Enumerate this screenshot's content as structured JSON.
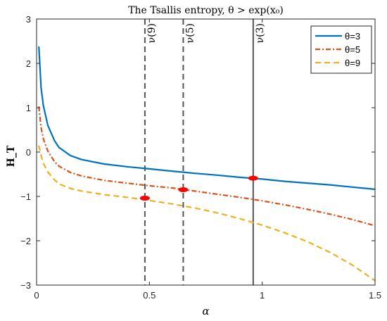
{
  "chart_data": {
    "type": "line",
    "title": "The Tsallis entropy, θ > exp(x₀)",
    "xlabel": "α",
    "ylabel": "H_T",
    "xlim": [
      0,
      1.5
    ],
    "ylim": [
      -3,
      3
    ],
    "xticks": [
      0,
      0.5,
      1,
      1.5
    ],
    "xtick_labels": [
      "0",
      "0.5",
      "1",
      "1.5"
    ],
    "yticks": [
      3,
      2,
      1,
      0,
      -1,
      -2,
      -3
    ],
    "ytick_labels": [
      "3",
      "2",
      "1",
      "0",
      "−1",
      "−2",
      "−3"
    ],
    "grid": false,
    "legend_position": "top-right",
    "series": [
      {
        "name": "θ=3",
        "color": "#0072BD",
        "style": "solid",
        "x": [
          0.01,
          0.02,
          0.03,
          0.05,
          0.08,
          0.1,
          0.15,
          0.2,
          0.3,
          0.4,
          0.5,
          0.6,
          0.7,
          0.8,
          0.9,
          1.0,
          1.1,
          1.2,
          1.3,
          1.4,
          1.5
        ],
        "y": [
          2.38,
          1.45,
          1.05,
          0.6,
          0.25,
          0.1,
          -0.08,
          -0.17,
          -0.27,
          -0.33,
          -0.38,
          -0.43,
          -0.48,
          -0.52,
          -0.57,
          -0.61,
          -0.66,
          -0.7,
          -0.74,
          -0.79,
          -0.84
        ]
      },
      {
        "name": "θ=5",
        "color": "#D95319",
        "style": "dashdot",
        "x": [
          0.01,
          0.02,
          0.03,
          0.05,
          0.08,
          0.1,
          0.15,
          0.2,
          0.3,
          0.4,
          0.5,
          0.6,
          0.7,
          0.8,
          0.9,
          1.0,
          1.1,
          1.2,
          1.3,
          1.4,
          1.5
        ],
        "y": [
          1.03,
          0.55,
          0.3,
          0.02,
          -0.22,
          -0.32,
          -0.46,
          -0.54,
          -0.64,
          -0.7,
          -0.76,
          -0.81,
          -0.88,
          -0.95,
          -1.02,
          -1.1,
          -1.19,
          -1.29,
          -1.4,
          -1.52,
          -1.66
        ]
      },
      {
        "name": "θ=9",
        "color": "#EDB120",
        "style": "dashed",
        "x": [
          0.01,
          0.02,
          0.03,
          0.05,
          0.08,
          0.1,
          0.15,
          0.2,
          0.3,
          0.4,
          0.5,
          0.6,
          0.7,
          0.8,
          0.9,
          1.0,
          1.1,
          1.2,
          1.3,
          1.4,
          1.5
        ],
        "y": [
          0.15,
          -0.08,
          -0.25,
          -0.45,
          -0.63,
          -0.72,
          -0.82,
          -0.88,
          -0.96,
          -1.02,
          -1.09,
          -1.17,
          -1.26,
          -1.37,
          -1.5,
          -1.65,
          -1.82,
          -2.02,
          -2.26,
          -2.55,
          -2.9
        ]
      }
    ],
    "vlines": [
      {
        "label": "ν(9)",
        "x": 0.48,
        "style": "dashed",
        "color": "#555555"
      },
      {
        "label": "ν(5)",
        "x": 0.65,
        "style": "dashed",
        "color": "#555555"
      },
      {
        "label": "ν(3)",
        "x": 0.96,
        "style": "solid",
        "color": "#555555"
      }
    ],
    "markers": [
      {
        "x": 0.48,
        "y": -1.04,
        "color": "#FF0000"
      },
      {
        "x": 0.65,
        "y": -0.85,
        "color": "#FF0000"
      },
      {
        "x": 0.96,
        "y": -0.59,
        "color": "#FF0000"
      }
    ]
  }
}
